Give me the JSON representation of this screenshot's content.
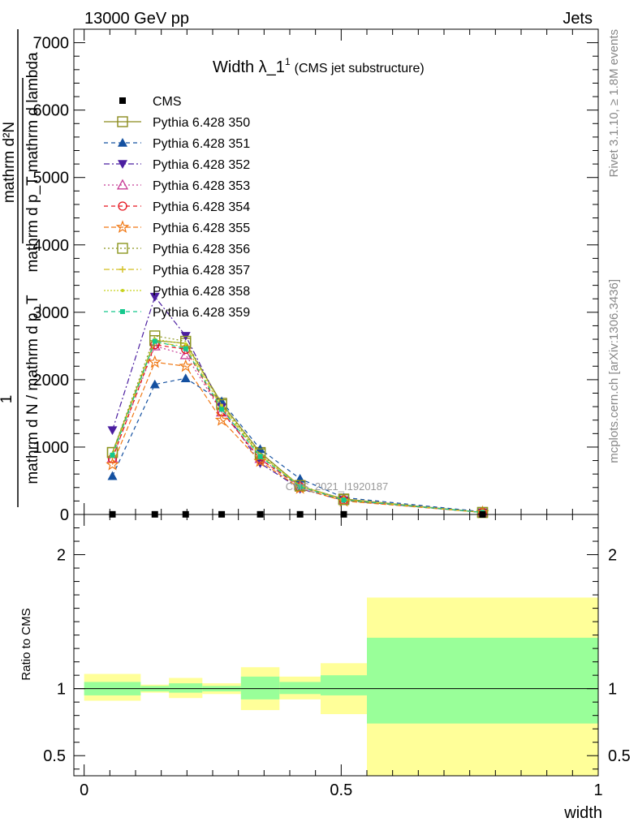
{
  "header": {
    "left": "13000 GeV pp",
    "right": "Jets"
  },
  "side_labels": {
    "rivet": "Rivet 3.1.10, ≥ 1.8M events",
    "mcplots": "mcplots.cern.ch [arXiv:1306.3436]"
  },
  "upper": {
    "title_main": "Width λ_1",
    "title_sup": "1",
    "title_paren": "(CMS jet substructure)",
    "watermark": "CMS_2021_I1920187",
    "ylabel_top": "1",
    "ylabel_num": "mathrm d²N",
    "ylabel_den": "mathrm d p_T mathrm d lambda",
    "ylabel_bottom": "mathrm d N / mathrm d p_T",
    "ylim": [
      0,
      7200
    ],
    "yticks": [
      {
        "v": 0,
        "label": "0"
      },
      {
        "v": 1000,
        "label": "1000"
      },
      {
        "v": 2000,
        "label": "2000"
      },
      {
        "v": 3000,
        "label": "3000"
      },
      {
        "v": 4000,
        "label": "4000"
      },
      {
        "v": 5000,
        "label": "5000"
      },
      {
        "v": 6000,
        "label": "6000"
      },
      {
        "v": 7000,
        "label": "7000"
      }
    ]
  },
  "lower": {
    "ylabel": "Ratio to CMS",
    "xlabel": "width",
    "yticks": [
      {
        "v": 0.5,
        "label": "0.5"
      },
      {
        "v": 1,
        "label": "1"
      },
      {
        "v": 2,
        "label": "2"
      }
    ],
    "xticks": [
      {
        "v": 0,
        "label": "0"
      },
      {
        "v": 0.5,
        "label": "0.5"
      },
      {
        "v": 1,
        "label": "1"
      }
    ]
  },
  "colors": {
    "band_green": "#99ff99",
    "band_yellow": "#ffff99",
    "data": "#000000"
  },
  "chart_data": {
    "type": "line",
    "xlim": [
      -0.02,
      1.0
    ],
    "bin_edges": [
      0,
      0.11,
      0.165,
      0.23,
      0.305,
      0.38,
      0.46,
      0.55,
      1.0
    ],
    "x": [
      0.055,
      0.1375,
      0.1975,
      0.2675,
      0.3425,
      0.42,
      0.505,
      0.775
    ],
    "data_values": [
      2,
      2,
      2,
      2,
      2,
      2,
      2,
      0
    ],
    "ratio_ylim": [
      0.35,
      2.3
    ],
    "ratio_green": [
      [
        0.95,
        1.05
      ],
      [
        0.98,
        1.02
      ],
      [
        0.97,
        1.04
      ],
      [
        0.98,
        1.02
      ],
      [
        0.92,
        1.09
      ],
      [
        0.96,
        1.05
      ],
      [
        0.95,
        1.1
      ],
      [
        0.74,
        1.38
      ]
    ],
    "ratio_yellow": [
      [
        0.91,
        1.11
      ],
      [
        0.97,
        1.03
      ],
      [
        0.93,
        1.08
      ],
      [
        0.96,
        1.04
      ],
      [
        0.84,
        1.16
      ],
      [
        0.92,
        1.09
      ],
      [
        0.81,
        1.19
      ],
      [
        0.35,
        1.68
      ]
    ],
    "series": [
      {
        "name": "CMS",
        "color": "#000000",
        "marker": "square-filled",
        "dash": "none",
        "line": false,
        "values": [
          2,
          2,
          2,
          2,
          2,
          2,
          2,
          0
        ]
      },
      {
        "name": "Pythia 6.428 350",
        "color": "#8c8c1e",
        "marker": "square-open",
        "dash": "solid",
        "line": true,
        "values": [
          920,
          2580,
          2540,
          1650,
          920,
          420,
          230,
          30
        ]
      },
      {
        "name": "Pythia 6.428 351",
        "color": "#1450a0",
        "marker": "triangle-up-filled",
        "dash": "5,4",
        "line": true,
        "values": [
          570,
          1930,
          2020,
          1680,
          970,
          530,
          250,
          40
        ]
      },
      {
        "name": "Pythia 6.428 352",
        "color": "#4b1ea0",
        "marker": "triangle-down-filled",
        "dash": "7,3,2,3",
        "line": true,
        "values": [
          1250,
          3230,
          2650,
          1590,
          760,
          380,
          210,
          30
        ]
      },
      {
        "name": "Pythia 6.428 353",
        "color": "#c83c96",
        "marker": "triangle-up-open",
        "dash": "2,3",
        "line": true,
        "values": [
          830,
          2500,
          2370,
          1520,
          830,
          420,
          220,
          30
        ]
      },
      {
        "name": "Pythia 6.428 354",
        "color": "#e6141e",
        "marker": "circle-open",
        "dash": "5,4",
        "line": true,
        "values": [
          830,
          2520,
          2450,
          1530,
          820,
          410,
          210,
          30
        ]
      },
      {
        "name": "Pythia 6.428 355",
        "color": "#f07814",
        "marker": "star-open",
        "dash": "6,3",
        "line": true,
        "values": [
          740,
          2260,
          2200,
          1400,
          790,
          390,
          200,
          30
        ]
      },
      {
        "name": "Pythia 6.428 356",
        "color": "#8c961e",
        "marker": "square-open",
        "dash": "2,3",
        "line": true,
        "values": [
          920,
          2650,
          2570,
          1630,
          900,
          430,
          220,
          30
        ]
      },
      {
        "name": "Pythia 6.428 357",
        "color": "#d2be1e",
        "marker": "cross",
        "dash": "7,3,2,3",
        "line": true,
        "values": [
          880,
          2560,
          2490,
          1590,
          870,
          420,
          220,
          30
        ]
      },
      {
        "name": "Pythia 6.428 358",
        "color": "#c8d21e",
        "marker": "dot",
        "dash": "2,2",
        "line": true,
        "values": [
          900,
          2600,
          2530,
          1620,
          880,
          425,
          220,
          30
        ]
      },
      {
        "name": "Pythia 6.428 359",
        "color": "#14c88c",
        "marker": "square-filled-small",
        "dash": "5,4",
        "line": true,
        "values": [
          880,
          2570,
          2460,
          1560,
          860,
          410,
          215,
          30
        ]
      }
    ]
  }
}
